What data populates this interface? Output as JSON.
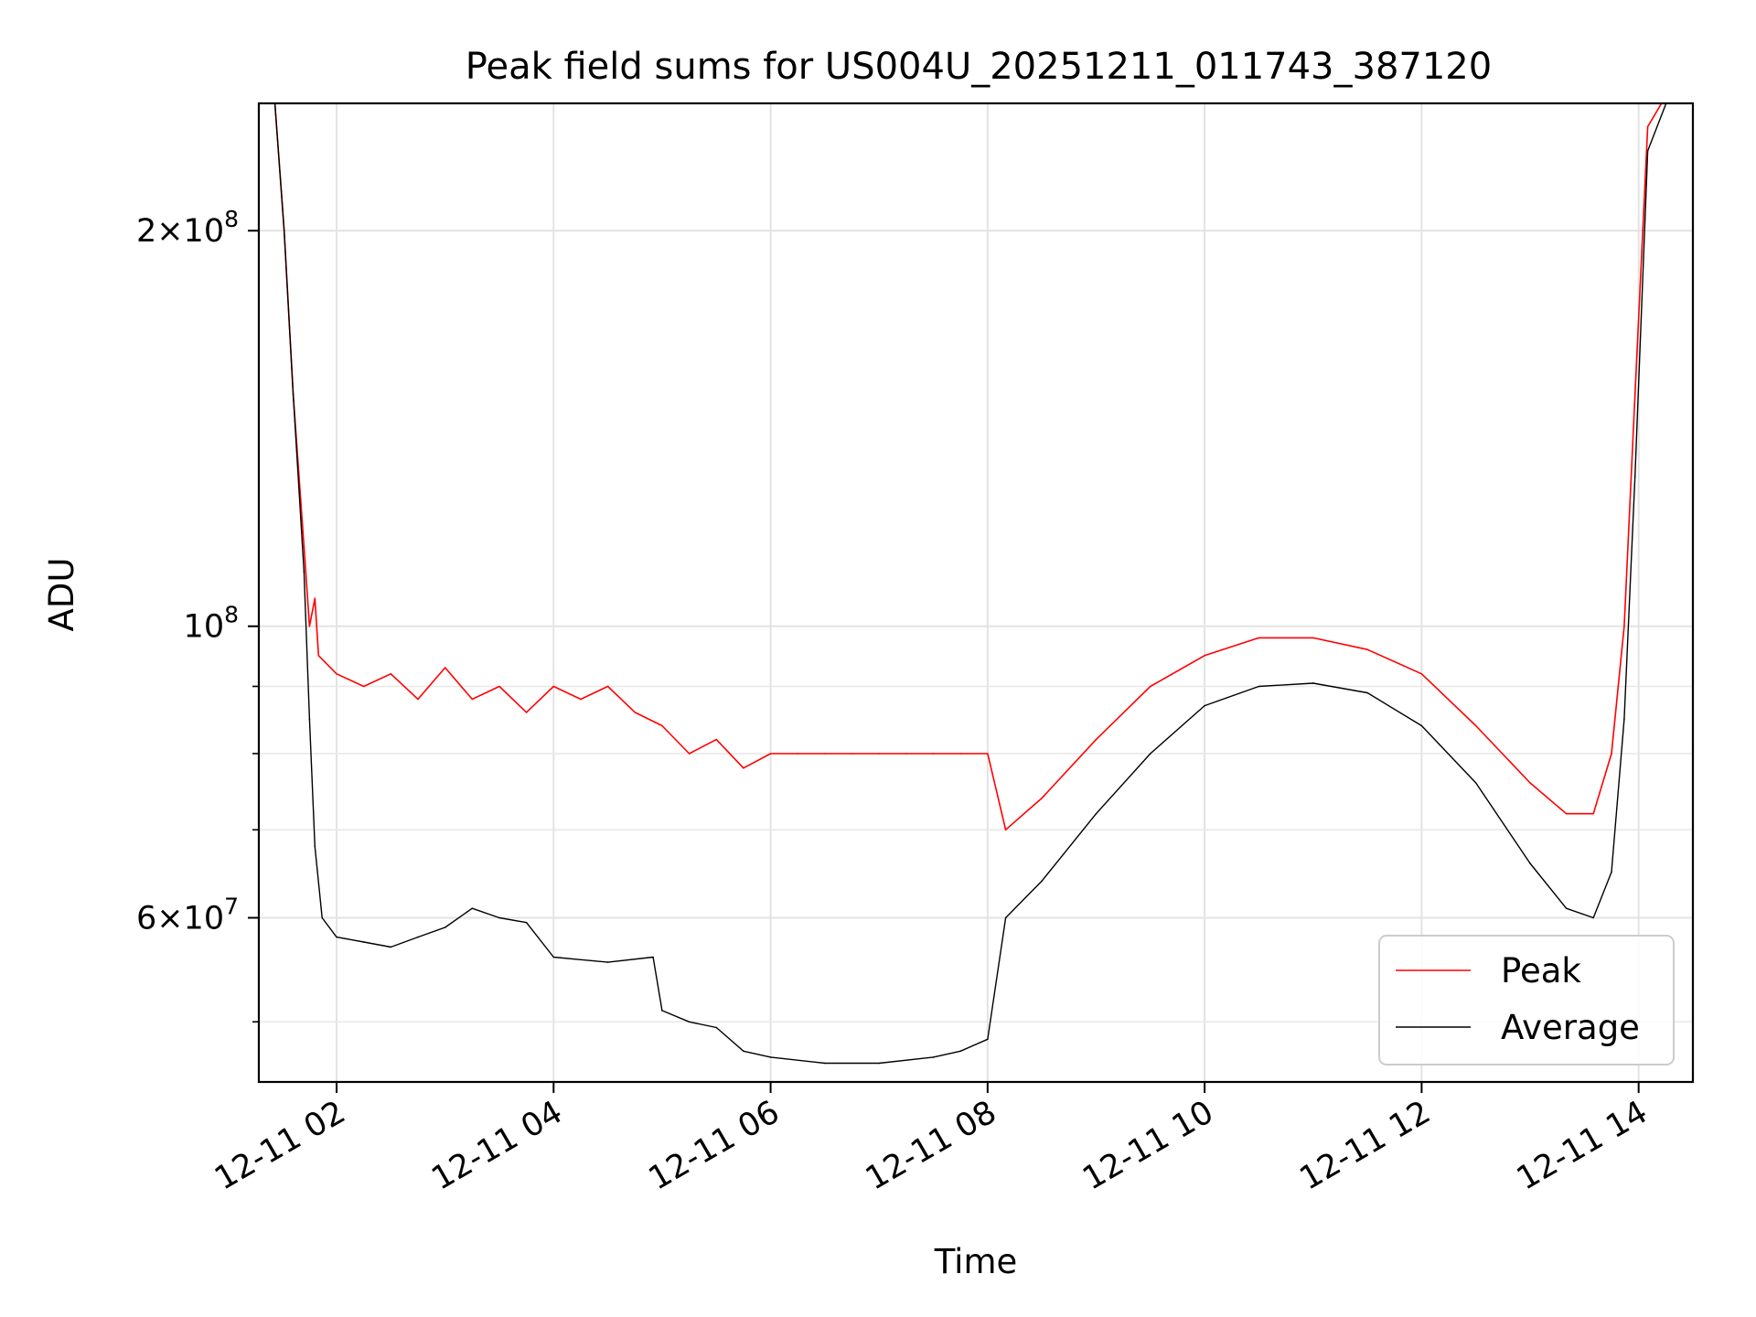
{
  "chart_data": {
    "type": "line",
    "title": "Peak field sums for US004U_20251211_011743_387120",
    "xlabel": "Time",
    "ylabel": "ADU",
    "yscale": "log",
    "grid": true,
    "legend_position": "lower-right",
    "x_range": [
      "2025-12-11 01:17",
      "2025-12-11 14:30"
    ],
    "y_range": [
      45000000,
      250000000
    ],
    "x_ticks": [
      "12-11 02",
      "12-11 04",
      "12-11 06",
      "12-11 08",
      "12-11 10",
      "12-11 12",
      "12-11 14"
    ],
    "y_ticks": [
      {
        "value": 200000000,
        "base": "2×10",
        "exp": "8"
      },
      {
        "value": 100000000,
        "base": "10",
        "exp": "8"
      },
      {
        "value": 60000000,
        "base": "6×10",
        "exp": "7"
      }
    ],
    "y_minor_ticks": [
      50000000,
      70000000,
      80000000,
      90000000
    ],
    "series": [
      {
        "name": "Peak",
        "color": "#ff0000",
        "x": [
          "01:25",
          "01:31",
          "01:36",
          "01:42",
          "01:45",
          "01:48",
          "01:50",
          "02:00",
          "02:15",
          "02:30",
          "02:45",
          "03:00",
          "03:15",
          "03:30",
          "03:45",
          "04:00",
          "04:15",
          "04:30",
          "04:45",
          "05:00",
          "05:15",
          "05:30",
          "05:45",
          "06:00",
          "06:15",
          "06:30",
          "06:45",
          "07:00",
          "07:15",
          "07:30",
          "07:45",
          "08:00",
          "08:10",
          "08:30",
          "09:00",
          "09:30",
          "10:00",
          "10:30",
          "11:00",
          "11:30",
          "12:00",
          "12:30",
          "13:00",
          "13:20",
          "13:35",
          "13:45",
          "13:52",
          "13:58",
          "14:05",
          "14:20"
        ],
        "y": [
          260000000,
          200000000,
          150000000,
          115000000,
          100000000,
          105000000,
          95000000,
          92000000,
          90000000,
          92000000,
          88000000,
          93000000,
          88000000,
          90000000,
          86000000,
          90000000,
          88000000,
          90000000,
          86000000,
          84000000,
          80000000,
          82000000,
          78000000,
          80000000,
          80000000,
          80000000,
          80000000,
          80000000,
          80000000,
          80000000,
          80000000,
          80000000,
          70000000,
          74000000,
          82000000,
          90000000,
          95000000,
          98000000,
          98000000,
          96000000,
          92000000,
          84000000,
          76000000,
          72000000,
          72000000,
          80000000,
          100000000,
          150000000,
          240000000,
          260000000
        ]
      },
      {
        "name": "Average",
        "color": "#000000",
        "x": [
          "01:25",
          "01:31",
          "01:36",
          "01:42",
          "01:45",
          "01:48",
          "01:52",
          "02:00",
          "02:15",
          "02:30",
          "02:45",
          "03:00",
          "03:15",
          "03:30",
          "03:45",
          "04:00",
          "04:30",
          "04:55",
          "05:00",
          "05:15",
          "05:30",
          "05:45",
          "06:00",
          "06:30",
          "07:00",
          "07:30",
          "07:45",
          "08:00",
          "08:10",
          "08:30",
          "09:00",
          "09:30",
          "10:00",
          "10:30",
          "11:00",
          "11:30",
          "12:00",
          "12:30",
          "13:00",
          "13:20",
          "13:35",
          "13:45",
          "13:52",
          "13:58",
          "14:05",
          "14:20"
        ],
        "y": [
          260000000,
          200000000,
          150000000,
          110000000,
          85000000,
          68000000,
          60000000,
          58000000,
          57500000,
          57000000,
          58000000,
          59000000,
          61000000,
          60000000,
          59500000,
          56000000,
          55500000,
          56000000,
          51000000,
          50000000,
          49500000,
          47500000,
          47000000,
          46500000,
          46500000,
          47000000,
          47500000,
          48500000,
          60000000,
          64000000,
          72000000,
          80000000,
          87000000,
          90000000,
          90500000,
          89000000,
          84000000,
          76000000,
          66000000,
          61000000,
          60000000,
          65000000,
          85000000,
          130000000,
          230000000,
          260000000
        ]
      }
    ]
  }
}
